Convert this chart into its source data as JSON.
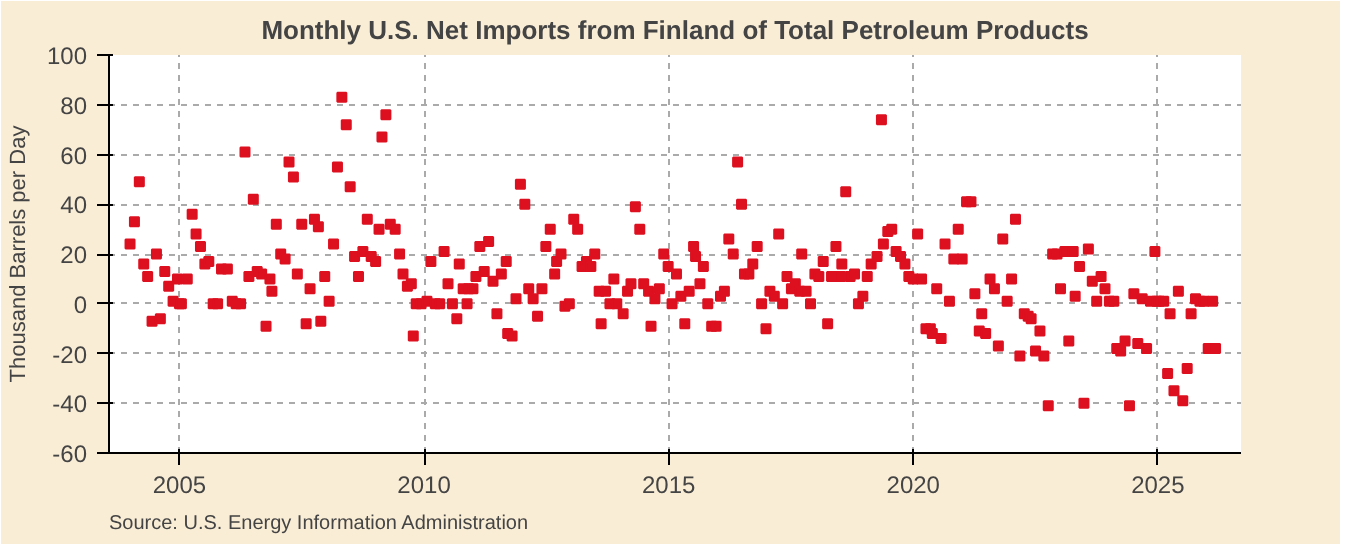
{
  "chart_data": {
    "type": "scatter",
    "title": "Monthly U.S. Net Imports from Finland of Total Petroleum Products",
    "ylabel": "Thousand Barrels per Day",
    "annotations": [
      "Source: U.S. Energy Information Administration"
    ],
    "marker": "square",
    "grid": true,
    "xlim": [
      2003.56,
      2026.7
    ],
    "xticks": [
      2005,
      2010,
      2015,
      2020,
      2025
    ],
    "ylim": [
      -60,
      100
    ],
    "yticks": [
      -60,
      -40,
      -20,
      0,
      20,
      40,
      60,
      80,
      100
    ],
    "series": [
      {
        "color": "#dd1020",
        "x": [
          2003.99,
          2004.08,
          2004.18,
          2004.27,
          2004.35,
          2004.44,
          2004.53,
          2004.61,
          2004.7,
          2004.78,
          2004.87,
          2004.96,
          2005.0,
          2005.04,
          2005.16,
          2005.26,
          2005.34,
          2005.43,
          2005.52,
          2005.6,
          2005.69,
          2005.78,
          2005.86,
          2005.98,
          2006.08,
          2006.16,
          2006.25,
          2006.34,
          2006.42,
          2006.51,
          2006.59,
          2006.68,
          2006.77,
          2006.85,
          2006.89,
          2006.98,
          2007.07,
          2007.16,
          2007.24,
          2007.33,
          2007.41,
          2007.5,
          2007.59,
          2007.67,
          2007.76,
          2007.84,
          2007.89,
          2007.97,
          2008.06,
          2008.15,
          2008.23,
          2008.32,
          2008.41,
          2008.49,
          2008.58,
          2008.66,
          2008.75,
          2008.84,
          2008.92,
          2009.01,
          2009.08,
          2009.14,
          2009.22,
          2009.31,
          2009.41,
          2009.5,
          2009.57,
          2009.66,
          2009.74,
          2009.78,
          2009.84,
          2009.94,
          2010.06,
          2010.14,
          2010.23,
          2010.32,
          2010.41,
          2010.49,
          2010.58,
          2010.67,
          2010.72,
          2010.8,
          2010.88,
          2010.91,
          2011.0,
          2011.06,
          2011.14,
          2011.23,
          2011.32,
          2011.41,
          2011.49,
          2011.58,
          2011.68,
          2011.71,
          2011.8,
          2011.88,
          2011.97,
          2012.06,
          2012.14,
          2012.23,
          2012.32,
          2012.41,
          2012.49,
          2012.58,
          2012.67,
          2012.71,
          2012.8,
          2012.88,
          2012.97,
          2013.06,
          2013.14,
          2013.23,
          2013.32,
          2013.41,
          2013.49,
          2013.58,
          2013.62,
          2013.71,
          2013.8,
          2013.88,
          2013.94,
          2014.07,
          2014.16,
          2014.23,
          2014.32,
          2014.41,
          2014.49,
          2014.59,
          2014.64,
          2014.72,
          2014.81,
          2014.9,
          2014.99,
          2015.07,
          2015.16,
          2015.25,
          2015.33,
          2015.42,
          2015.51,
          2015.55,
          2015.64,
          2015.71,
          2015.8,
          2015.88,
          2015.97,
          2016.06,
          2016.14,
          2016.23,
          2016.32,
          2016.41,
          2016.49,
          2016.55,
          2016.64,
          2016.72,
          2016.81,
          2016.9,
          2016.99,
          2017.07,
          2017.16,
          2017.25,
          2017.33,
          2017.42,
          2017.51,
          2017.59,
          2017.68,
          2017.72,
          2017.81,
          2017.9,
          2017.99,
          2018.07,
          2018.16,
          2018.25,
          2018.33,
          2018.42,
          2018.51,
          2018.54,
          2018.62,
          2018.71,
          2018.8,
          2018.88,
          2018.97,
          2019.06,
          2019.14,
          2019.26,
          2019.35,
          2019.39,
          2019.48,
          2019.56,
          2019.65,
          2019.74,
          2019.83,
          2019.91,
          2020.0,
          2020.09,
          2020.17,
          2020.26,
          2020.35,
          2020.39,
          2020.48,
          2020.57,
          2020.65,
          2020.74,
          2020.83,
          2020.92,
          2021.0,
          2021.09,
          2021.18,
          2021.26,
          2021.35,
          2021.4,
          2021.48,
          2021.57,
          2021.66,
          2021.74,
          2021.83,
          2021.92,
          2022.01,
          2022.09,
          2022.18,
          2022.27,
          2022.35,
          2022.41,
          2022.5,
          2022.59,
          2022.67,
          2022.76,
          2022.85,
          2022.94,
          2023.01,
          2023.1,
          2023.18,
          2023.27,
          2023.31,
          2023.4,
          2023.49,
          2023.58,
          2023.66,
          2023.75,
          2023.84,
          2023.92,
          2024.01,
          2024.1,
          2024.16,
          2024.24,
          2024.33,
          2024.42,
          2024.51,
          2024.59,
          2024.68,
          2024.77,
          2024.85,
          2024.94,
          2024.98,
          2025.03,
          2025.12,
          2025.2,
          2025.25,
          2025.33,
          2025.42,
          2025.51,
          2025.6,
          2025.68,
          2025.77,
          2025.86,
          2025.94,
          2026.03,
          2026.12,
          2026.18
        ],
        "values": [
          24,
          33,
          49,
          16,
          11,
          -7,
          20,
          -6,
          13,
          7,
          1,
          10,
          0,
          0,
          10,
          36,
          28,
          23,
          16,
          17,
          0,
          0,
          14,
          14,
          1,
          0,
          0,
          61,
          11,
          42,
          13,
          12,
          -9,
          10,
          5,
          32,
          20,
          18,
          57,
          51,
          12,
          32,
          -8,
          6,
          34,
          31,
          -7,
          11,
          1,
          24,
          55,
          83,
          72,
          47,
          19,
          11,
          21,
          34,
          19,
          17,
          30,
          67,
          76,
          32,
          30,
          20,
          12,
          7,
          8,
          -13,
          0,
          0,
          1,
          17,
          0,
          0,
          21,
          8,
          0,
          -6,
          16,
          6,
          0,
          6,
          6,
          11,
          23,
          13,
          25,
          9,
          -4,
          12,
          17,
          -12,
          -13,
          2,
          48,
          40,
          6,
          2,
          -5,
          6,
          23,
          30,
          12,
          17,
          20,
          -1,
          0,
          34,
          30,
          15,
          17,
          15,
          20,
          5,
          -8,
          5,
          0,
          10,
          0,
          -4,
          5,
          8,
          39,
          30,
          8,
          5,
          -9,
          2,
          6,
          20,
          15,
          0,
          12,
          3,
          -8,
          5,
          23,
          19,
          8,
          15,
          0,
          -9,
          -9,
          3,
          5,
          26,
          20,
          57,
          40,
          12,
          12,
          16,
          23,
          0,
          -10,
          5,
          3,
          28,
          0,
          11,
          6,
          8,
          5,
          20,
          5,
          0,
          12,
          11,
          17,
          -8,
          11,
          23,
          11,
          16,
          45,
          11,
          12,
          0,
          3,
          11,
          16,
          19,
          74,
          24,
          29,
          30,
          21,
          19,
          16,
          11,
          10,
          28,
          10,
          -10,
          -10,
          -12,
          6,
          -14,
          24,
          1,
          18,
          30,
          18,
          41,
          41,
          4,
          -11,
          -4,
          -12,
          10,
          6,
          -17,
          26,
          1,
          10,
          34,
          -21,
          -4,
          -5,
          -6,
          -19,
          -11,
          -21,
          -41,
          20,
          20,
          6,
          21,
          -15,
          21,
          3,
          15,
          -40,
          22,
          9,
          1,
          11,
          6,
          1,
          1,
          -18,
          -19,
          -15,
          -41,
          4,
          -16,
          2,
          -18,
          1,
          21,
          1,
          1,
          1,
          -28,
          -4,
          -35,
          5,
          -39,
          -26,
          -4,
          2,
          1,
          1,
          -18,
          1,
          -18
        ]
      }
    ]
  }
}
